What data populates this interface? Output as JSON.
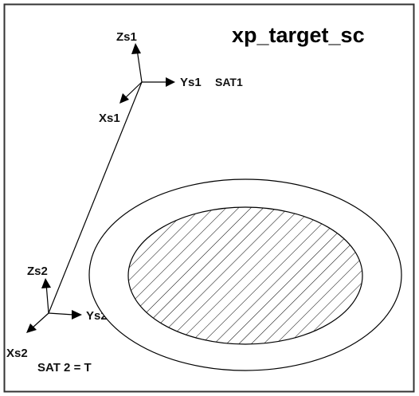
{
  "title": "xp_target_sc",
  "sat1": {
    "name": "SAT1",
    "axes": {
      "z": "Zs1",
      "y": "Ys1",
      "x": "Xs1"
    }
  },
  "sat2": {
    "name": "SAT 2 = T",
    "axes": {
      "z": "Zs2",
      "y": "Ys2",
      "x": "Xs2"
    }
  },
  "colors": {
    "stroke": "#000000",
    "frame": "#444444",
    "background": "#ffffff"
  }
}
